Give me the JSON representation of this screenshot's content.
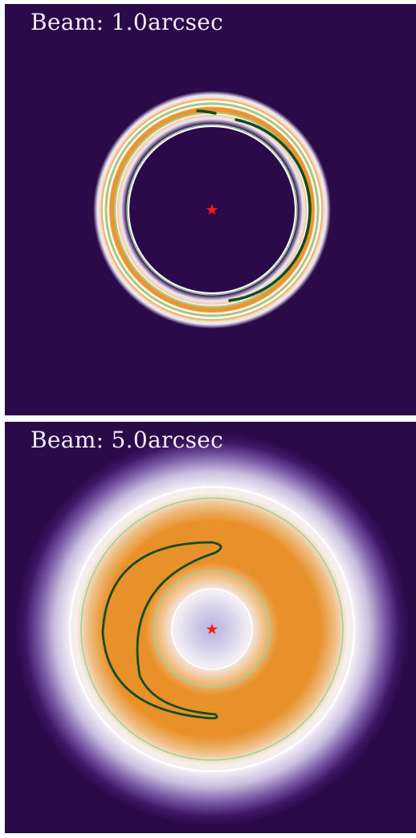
{
  "panels": [
    {
      "id": "top",
      "label": "Beam: 1.0arcsec"
    },
    {
      "id": "bottom",
      "label": "Beam: 5.0arcsec"
    }
  ],
  "colors": {
    "background": "#2b0a4a",
    "emission": "#e8912a",
    "contour_outer": "#ffffff",
    "contour_mid": "#9fd39a",
    "contour_dark": "#124c1c",
    "star": "#ff1a1a"
  },
  "icons": {
    "star": "red-star-icon"
  }
}
